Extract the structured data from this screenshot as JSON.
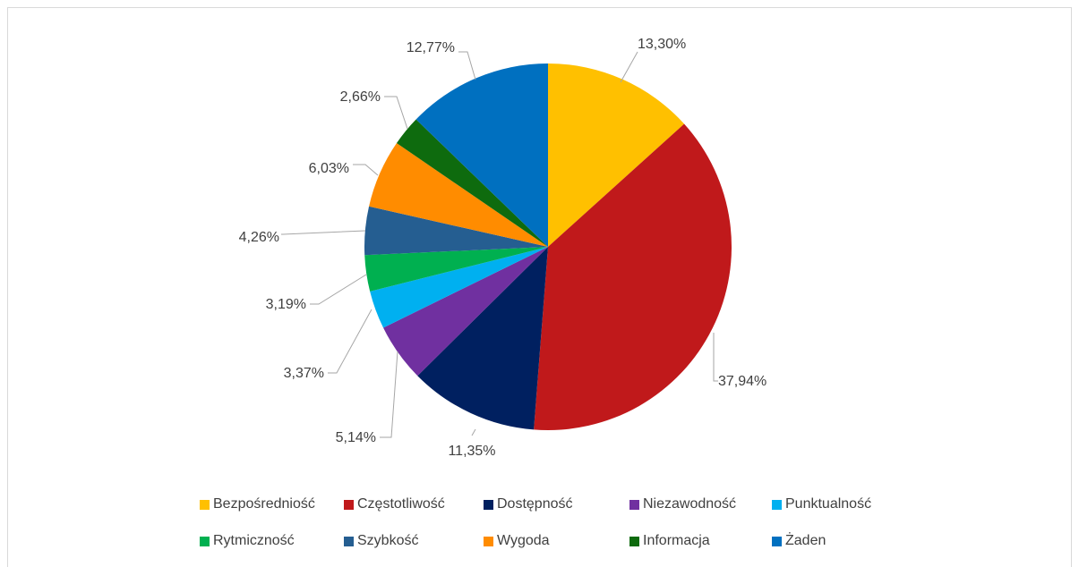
{
  "chart_data": {
    "type": "pie",
    "title": "",
    "legend_position": "bottom",
    "slices": [
      {
        "name": "Bezpośredniość",
        "value": 13.3,
        "label": "13,30%",
        "color": "#FFC000"
      },
      {
        "name": "Częstotliwość",
        "value": 37.94,
        "label": "37,94%",
        "color": "#C0191B"
      },
      {
        "name": "Dostępność",
        "value": 11.35,
        "label": "11,35%",
        "color": "#002060"
      },
      {
        "name": "Niezawodność",
        "value": 5.14,
        "label": "5,14%",
        "color": "#7030A0"
      },
      {
        "name": "Punktualność",
        "value": 3.37,
        "label": "3,37%",
        "color": "#00B0F0"
      },
      {
        "name": "Rytmiczność",
        "value": 3.19,
        "label": "3,19%",
        "color": "#00B050"
      },
      {
        "name": "Szybkość",
        "value": 4.26,
        "label": "4,26%",
        "color": "#255E91"
      },
      {
        "name": "Wygoda",
        "value": 6.03,
        "label": "6,03%",
        "color": "#FF8C00"
      },
      {
        "name": "Informacja",
        "value": 2.66,
        "label": "2,66%",
        "color": "#0E6B0E"
      },
      {
        "name": "Żaden",
        "value": 12.77,
        "label": "12,77%",
        "color": "#0070C0"
      }
    ]
  }
}
